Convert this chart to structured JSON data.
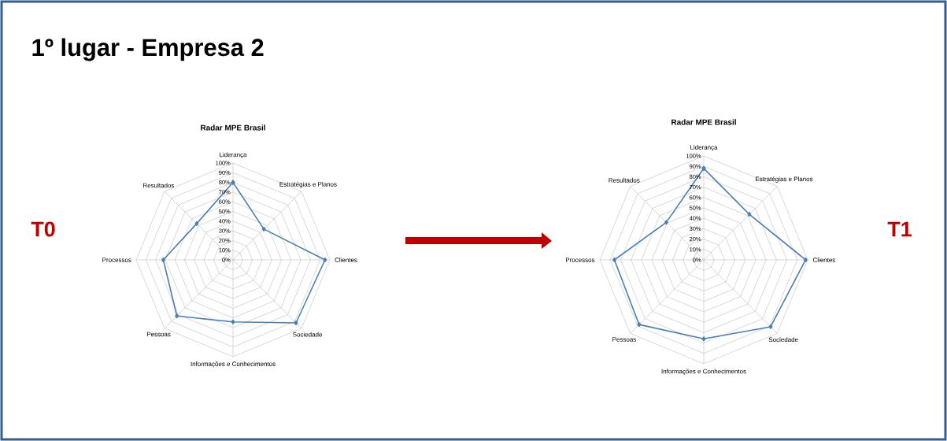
{
  "chart_data": [
    {
      "type": "other",
      "title": "1º lugar - Empresa 2"
    },
    {
      "type": "radar",
      "title": "Radar MPE Brasil",
      "annotations": [
        "T0"
      ],
      "categories": [
        "Liderança",
        "Estratégias e Planos",
        "Clientes",
        "Sociedade",
        "Informações e Conhecimentos",
        "Pessoas",
        "Processos",
        "Resultados"
      ],
      "series": [
        {
          "color": "#4a7ebb",
          "values": [
            80,
            45,
            95,
            92,
            64,
            82,
            72,
            53
          ]
        }
      ],
      "ylim": [
        0,
        100
      ],
      "yticks": [
        {
          "value": 0,
          "label": "0%"
        },
        {
          "value": 10,
          "label": "10%"
        },
        {
          "value": 20,
          "label": "20%"
        },
        {
          "value": 30,
          "label": "30%"
        },
        {
          "value": 40,
          "label": "40%"
        },
        {
          "value": 50,
          "label": "50%"
        },
        {
          "value": 60,
          "label": "60%"
        },
        {
          "value": 70,
          "label": "70%"
        },
        {
          "value": 80,
          "label": "80%"
        },
        {
          "value": 90,
          "label": "90%"
        },
        {
          "value": 100,
          "label": "100%"
        }
      ],
      "grid": true,
      "marker": "diamond"
    },
    {
      "type": "radar",
      "title": "Radar MPE Brasil",
      "annotations": [
        "T1"
      ],
      "categories": [
        "Liderança",
        "Estratégias e Planos",
        "Clientes",
        "Sociedade",
        "Informações e Conhecimentos",
        "Pessoas",
        "Processos",
        "Resultados"
      ],
      "series": [
        {
          "color": "#4a7ebb",
          "values": [
            88,
            62,
            98,
            91,
            76,
            88,
            86,
            51
          ]
        }
      ],
      "ylim": [
        0,
        100
      ],
      "yticks": [
        {
          "value": 0,
          "label": "0%"
        },
        {
          "value": 10,
          "label": "10%"
        },
        {
          "value": 20,
          "label": "20%"
        },
        {
          "value": 30,
          "label": "30%"
        },
        {
          "value": 40,
          "label": "40%"
        },
        {
          "value": 50,
          "label": "50%"
        },
        {
          "value": 60,
          "label": "60%"
        },
        {
          "value": 70,
          "label": "70%"
        },
        {
          "value": 80,
          "label": "80%"
        },
        {
          "value": 90,
          "label": "90%"
        },
        {
          "value": 100,
          "label": "100%"
        }
      ],
      "grid": true,
      "marker": "diamond"
    }
  ]
}
